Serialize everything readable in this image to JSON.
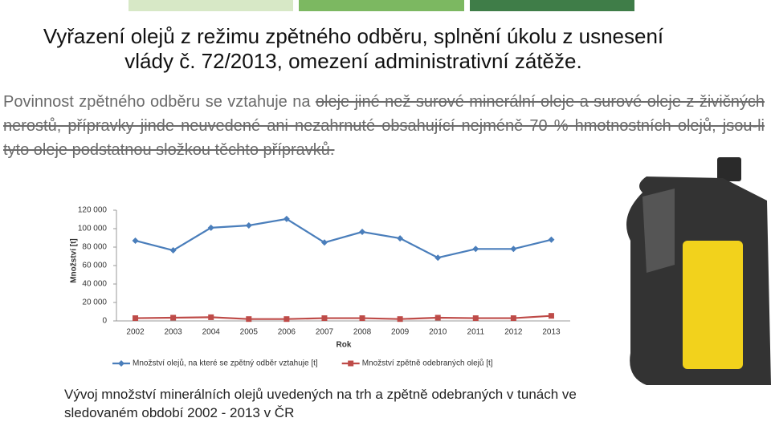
{
  "header": {
    "title": "Vyřazení olejů z režimu zpětného odběru, splnění úkolu z usnesení vlády č. 72/2013, omezení administrativní zátěže."
  },
  "paragraph": {
    "intro": "Povinnost zpětného odběru se vztahuje na ",
    "struck": "oleje jiné než surové minerální oleje a surové oleje z živičných nerostů, přípravky jinde neuvedené ani nezahrnuté obsahující nejméně 70 % hmotnostních olejů, jsou-li tyto oleje podstatnou složkou těchto přípravků."
  },
  "caption": "Vývoj množství minerálních olejů uvedených na trh a zpětně odebraných v tunách ve sledovaném období 2002 - 2013 v ČR",
  "chart_data": {
    "type": "line",
    "x_label": "Rok",
    "y_label": "Množství [t]",
    "categories": [
      "2002",
      "2003",
      "2004",
      "2005",
      "2006",
      "2007",
      "2008",
      "2009",
      "2010",
      "2011",
      "2012",
      "2013"
    ],
    "series": [
      {
        "name": "Množství olejů, na které se zpětný odběr vztahuje [t]",
        "color": "#4a7ebb",
        "marker": "diamond",
        "values": [
          87000,
          76500,
          101000,
          103500,
          110500,
          85000,
          96500,
          89500,
          68500,
          78000,
          78000,
          88000
        ]
      },
      {
        "name": "Množství zpětně odebraných olejů [t]",
        "color": "#be4b48",
        "marker": "square",
        "values": [
          3000,
          3500,
          4000,
          2000,
          2000,
          3000,
          3000,
          2000,
          3500,
          3000,
          3000,
          5500
        ]
      }
    ],
    "ylim": [
      0,
      120000
    ],
    "yticks": [
      0,
      {
        "value": 20000,
        "label": "20 000"
      },
      {
        "value": 40000,
        "label": "40 000"
      },
      {
        "value": 60000,
        "label": "60 000"
      },
      {
        "value": 80000,
        "label": "80 000"
      },
      {
        "value": 100000,
        "label": "100 000"
      },
      {
        "value": 120000,
        "label": "120 000"
      }
    ],
    "legend": "bottom"
  }
}
